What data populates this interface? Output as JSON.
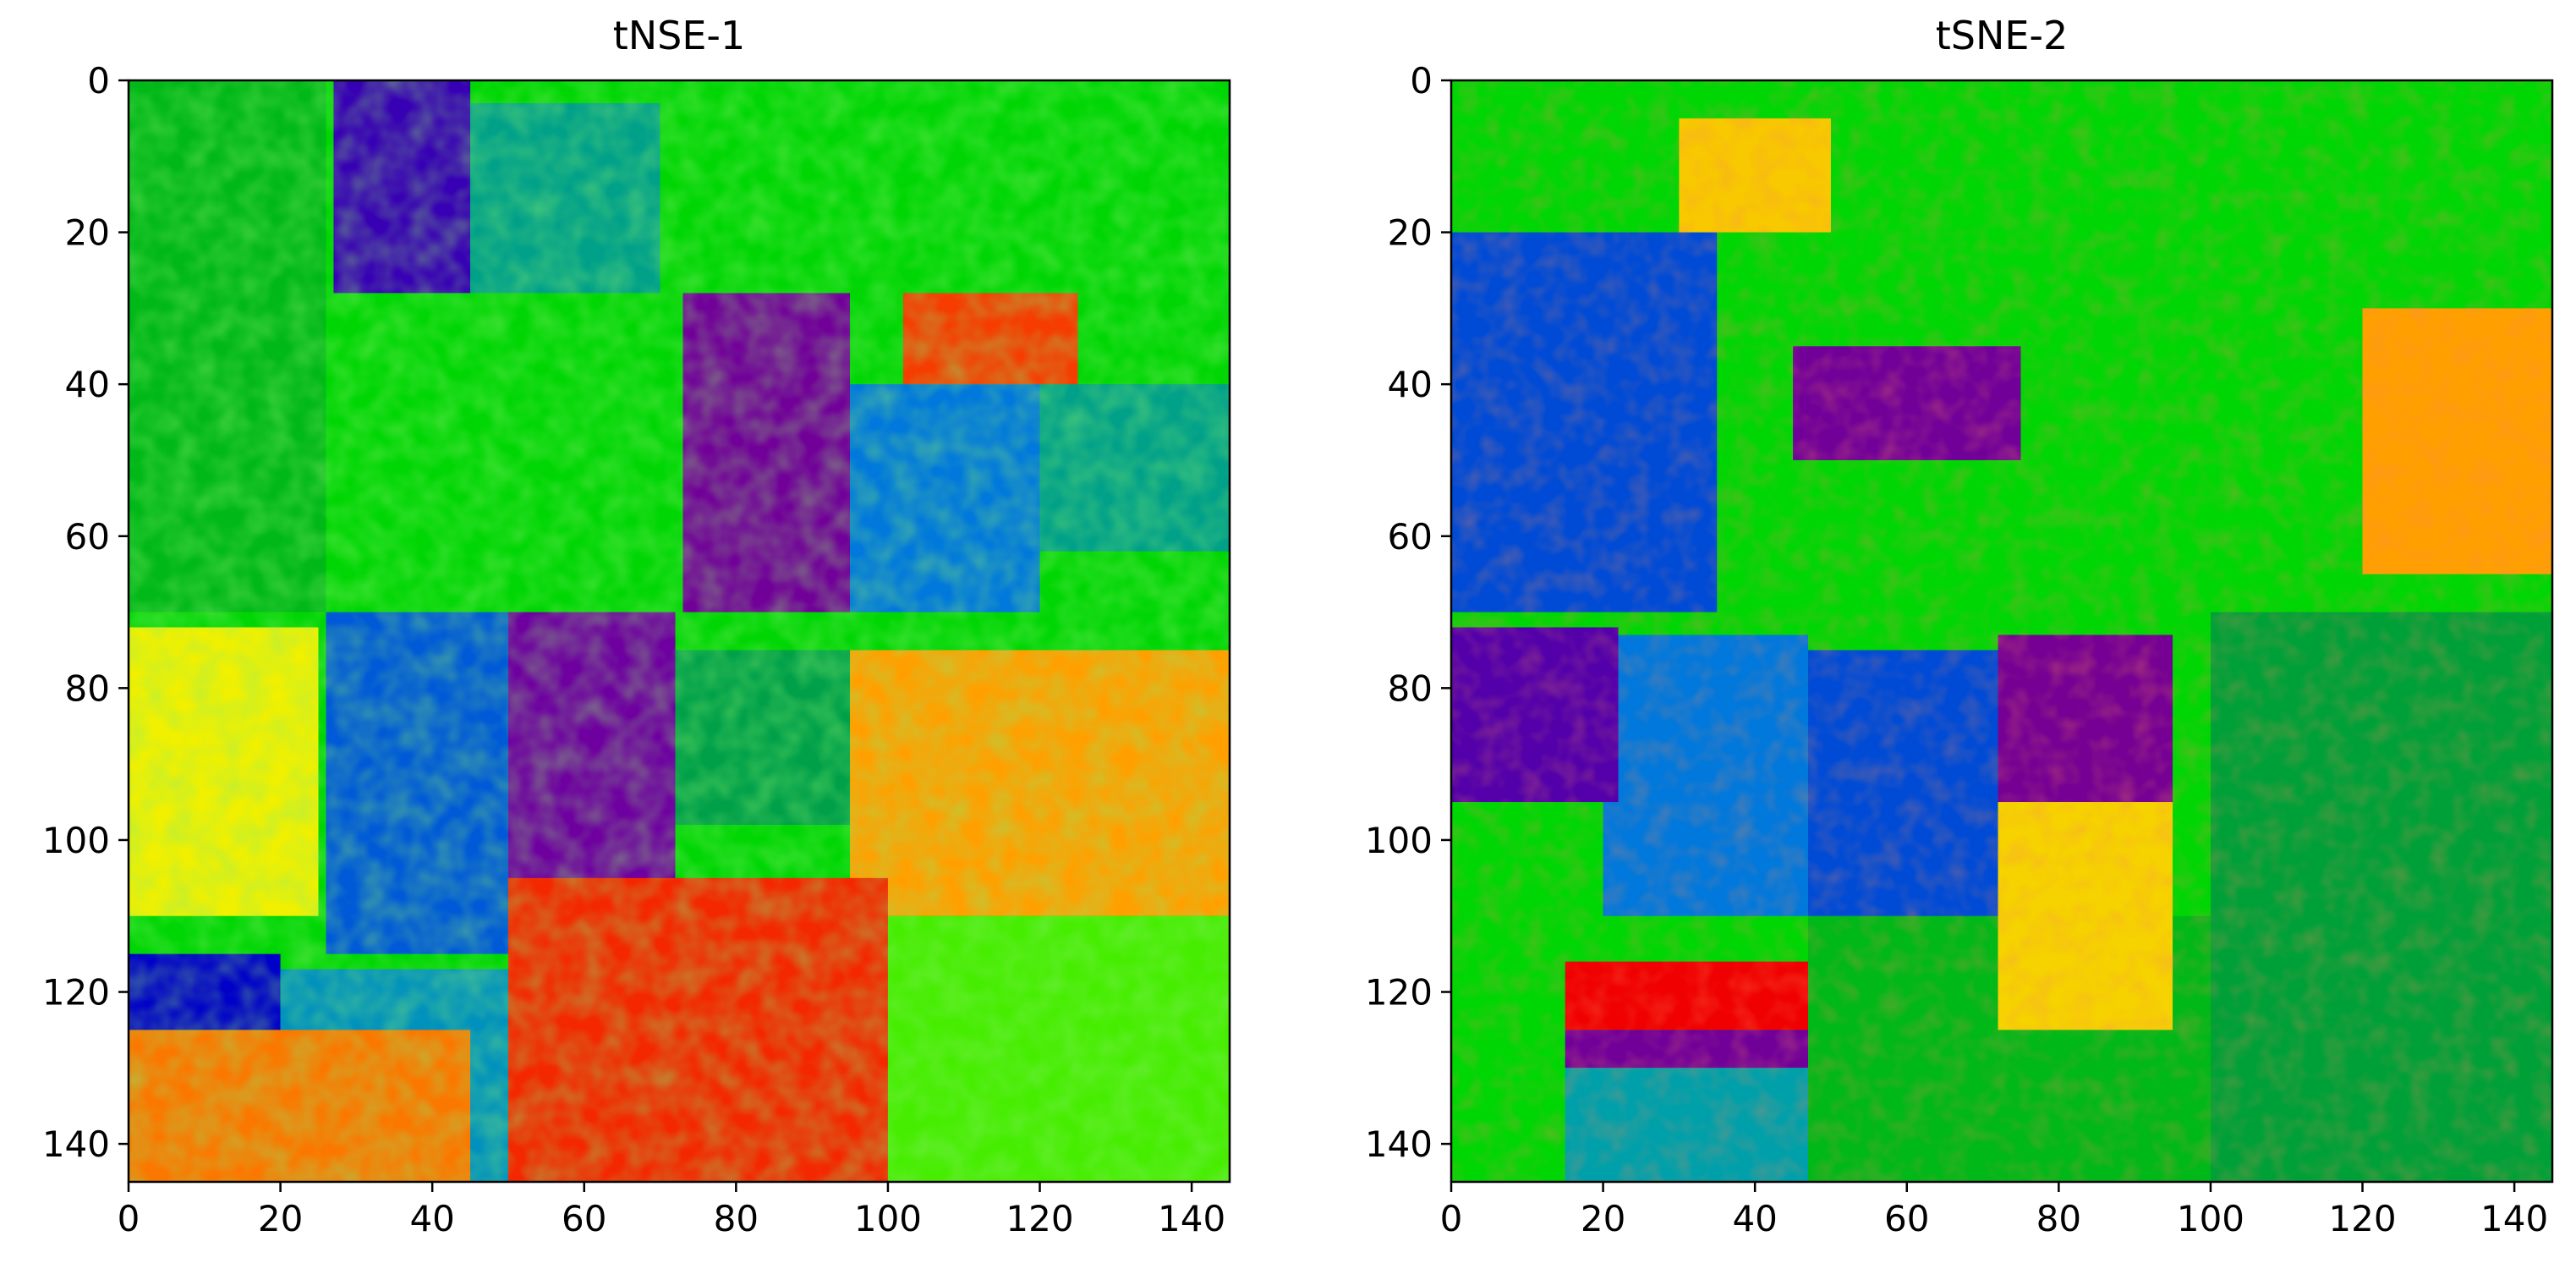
{
  "chart_data": [
    {
      "type": "heatmap",
      "title": "tNSE-1",
      "colormap": "nipy_spectral",
      "grid": false,
      "xlim": [
        0,
        145
      ],
      "ylim": [
        0,
        145
      ],
      "y_inverted": true,
      "xticks": [
        0,
        20,
        40,
        60,
        80,
        100,
        120,
        140
      ],
      "yticks": [
        0,
        20,
        40,
        60,
        80,
        100,
        120,
        140
      ],
      "regions": [
        {
          "x": [
            0,
            145
          ],
          "y": [
            0,
            145
          ],
          "value": 0.55
        },
        {
          "x": [
            0,
            26
          ],
          "y": [
            0,
            70
          ],
          "value": 0.5
        },
        {
          "x": [
            27,
            45
          ],
          "y": [
            0,
            28
          ],
          "value": 0.18
        },
        {
          "x": [
            45,
            70
          ],
          "y": [
            3,
            28
          ],
          "value": 0.4
        },
        {
          "x": [
            73,
            95
          ],
          "y": [
            28,
            70
          ],
          "value": 0.12
        },
        {
          "x": [
            95,
            120
          ],
          "y": [
            40,
            70
          ],
          "value": 0.3
        },
        {
          "x": [
            120,
            145
          ],
          "y": [
            40,
            62
          ],
          "value": 0.4
        },
        {
          "x": [
            102,
            125
          ],
          "y": [
            28,
            40
          ],
          "value": 0.85
        },
        {
          "x": [
            0,
            25
          ],
          "y": [
            72,
            110
          ],
          "value": 0.72
        },
        {
          "x": [
            26,
            50
          ],
          "y": [
            70,
            115
          ],
          "value": 0.28
        },
        {
          "x": [
            50,
            72
          ],
          "y": [
            70,
            115
          ],
          "value": 0.14
        },
        {
          "x": [
            72,
            95
          ],
          "y": [
            75,
            98
          ],
          "value": 0.44
        },
        {
          "x": [
            95,
            145
          ],
          "y": [
            75,
            110
          ],
          "value": 0.8
        },
        {
          "x": [
            0,
            20
          ],
          "y": [
            115,
            125
          ],
          "value": 0.22
        },
        {
          "x": [
            20,
            50
          ],
          "y": [
            117,
            145
          ],
          "value": 0.35
        },
        {
          "x": [
            50,
            100
          ],
          "y": [
            105,
            145
          ],
          "value": 0.86
        },
        {
          "x": [
            100,
            145
          ],
          "y": [
            110,
            145
          ],
          "value": 0.6
        },
        {
          "x": [
            0,
            45
          ],
          "y": [
            125,
            145
          ],
          "value": 0.82
        }
      ]
    },
    {
      "type": "heatmap",
      "title": "tSNE-2",
      "colormap": "nipy_spectral",
      "grid": false,
      "xlim": [
        0,
        145
      ],
      "ylim": [
        0,
        145
      ],
      "y_inverted": true,
      "xticks": [
        0,
        20,
        40,
        60,
        80,
        100,
        120,
        140
      ],
      "yticks": [
        0,
        20,
        40,
        60,
        80,
        100,
        120,
        140
      ],
      "regions": [
        {
          "x": [
            0,
            145
          ],
          "y": [
            0,
            145
          ],
          "value": 0.55
        },
        {
          "x": [
            0,
            35
          ],
          "y": [
            20,
            70
          ],
          "value": 0.27
        },
        {
          "x": [
            30,
            50
          ],
          "y": [
            5,
            20
          ],
          "value": 0.76
        },
        {
          "x": [
            45,
            75
          ],
          "y": [
            35,
            50
          ],
          "value": 0.12
        },
        {
          "x": [
            120,
            145
          ],
          "y": [
            30,
            65
          ],
          "value": 0.8
        },
        {
          "x": [
            20,
            47
          ],
          "y": [
            73,
            110
          ],
          "value": 0.3
        },
        {
          "x": [
            47,
            72
          ],
          "y": [
            75,
            115
          ],
          "value": 0.27
        },
        {
          "x": [
            72,
            95
          ],
          "y": [
            73,
            95
          ],
          "value": 0.1
        },
        {
          "x": [
            0,
            22
          ],
          "y": [
            72,
            95
          ],
          "value": 0.16
        },
        {
          "x": [
            15,
            47
          ],
          "y": [
            116,
            125
          ],
          "value": 0.88
        },
        {
          "x": [
            15,
            47
          ],
          "y": [
            125,
            130
          ],
          "value": 0.12
        },
        {
          "x": [
            15,
            47
          ],
          "y": [
            130,
            145
          ],
          "value": 0.38
        },
        {
          "x": [
            47,
            100
          ],
          "y": [
            110,
            145
          ],
          "value": 0.5
        },
        {
          "x": [
            100,
            145
          ],
          "y": [
            70,
            145
          ],
          "value": 0.45
        },
        {
          "x": [
            72,
            95
          ],
          "y": [
            95,
            125
          ],
          "value": 0.75
        }
      ]
    }
  ]
}
